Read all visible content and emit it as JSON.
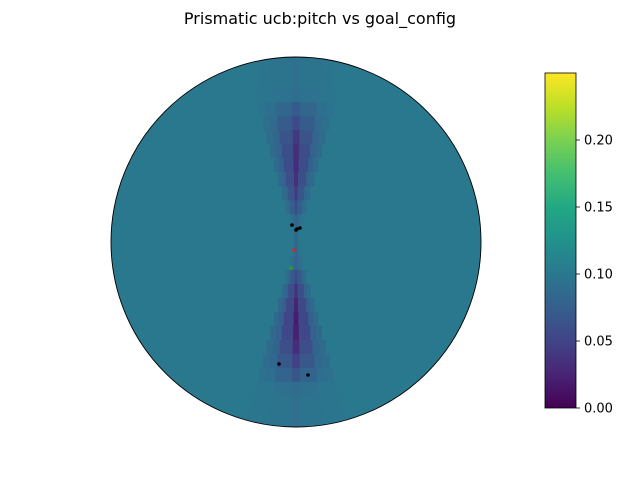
{
  "chart_data": {
    "type": "heatmap",
    "projection": "polar",
    "title": "Prismatic ucb:pitch vs goal_config",
    "background_value": 0.1,
    "colormap": "viridis",
    "colorbar": {
      "vmin": 0.0,
      "vmax": 0.25,
      "ticks": [
        0.0,
        0.05,
        0.1,
        0.15,
        0.2
      ],
      "tick_labels": [
        "0.00",
        "0.05",
        "0.10",
        "0.15",
        "0.20"
      ]
    },
    "low_value_region": {
      "description_values": [
        0.02,
        0.03,
        0.04,
        0.05,
        0.06,
        0.07,
        0.08,
        0.09
      ],
      "upper_cone_min": 0.03,
      "lower_cone_min": 0.02
    },
    "markers": {
      "samples_color": "#000000",
      "best_color": "#d62728",
      "goal_color": "#2ca02c"
    }
  },
  "colors": {
    "background_cell": "#2a788e"
  }
}
